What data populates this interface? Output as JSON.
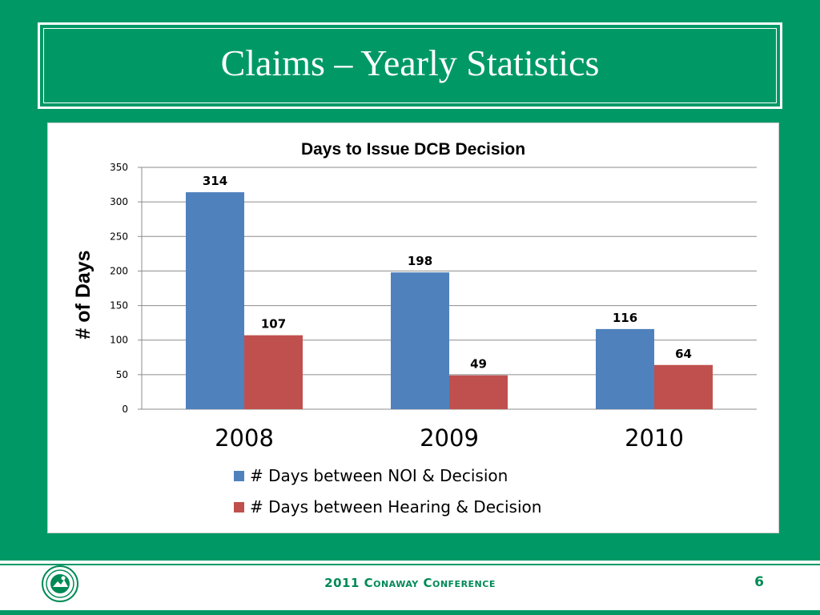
{
  "slide": {
    "title": "Claims – Yearly Statistics",
    "footer_text": "2011 Conaway Conference",
    "page_number": "6"
  },
  "colors": {
    "background": "#009966",
    "series_1": "#4f81bd",
    "series_2": "#c0504d"
  },
  "icons": {
    "seal": "state-seal-icon"
  },
  "chart_data": {
    "type": "bar",
    "title": "Days to Issue DCB Decision",
    "xlabel": "",
    "ylabel": "# of Days",
    "categories": [
      "2008",
      "2009",
      "2010"
    ],
    "series": [
      {
        "name": "# Days between NOI & Decision",
        "values": [
          314,
          198,
          116
        ],
        "color": "#4f81bd"
      },
      {
        "name": "# Days between Hearing & Decision",
        "values": [
          107,
          49,
          64
        ],
        "color": "#c0504d"
      }
    ],
    "ylim": [
      0,
      350
    ],
    "yticks": [
      0,
      50,
      100,
      150,
      200,
      250,
      300,
      350
    ],
    "grid": true,
    "data_labels": true,
    "legend_position": "bottom"
  }
}
